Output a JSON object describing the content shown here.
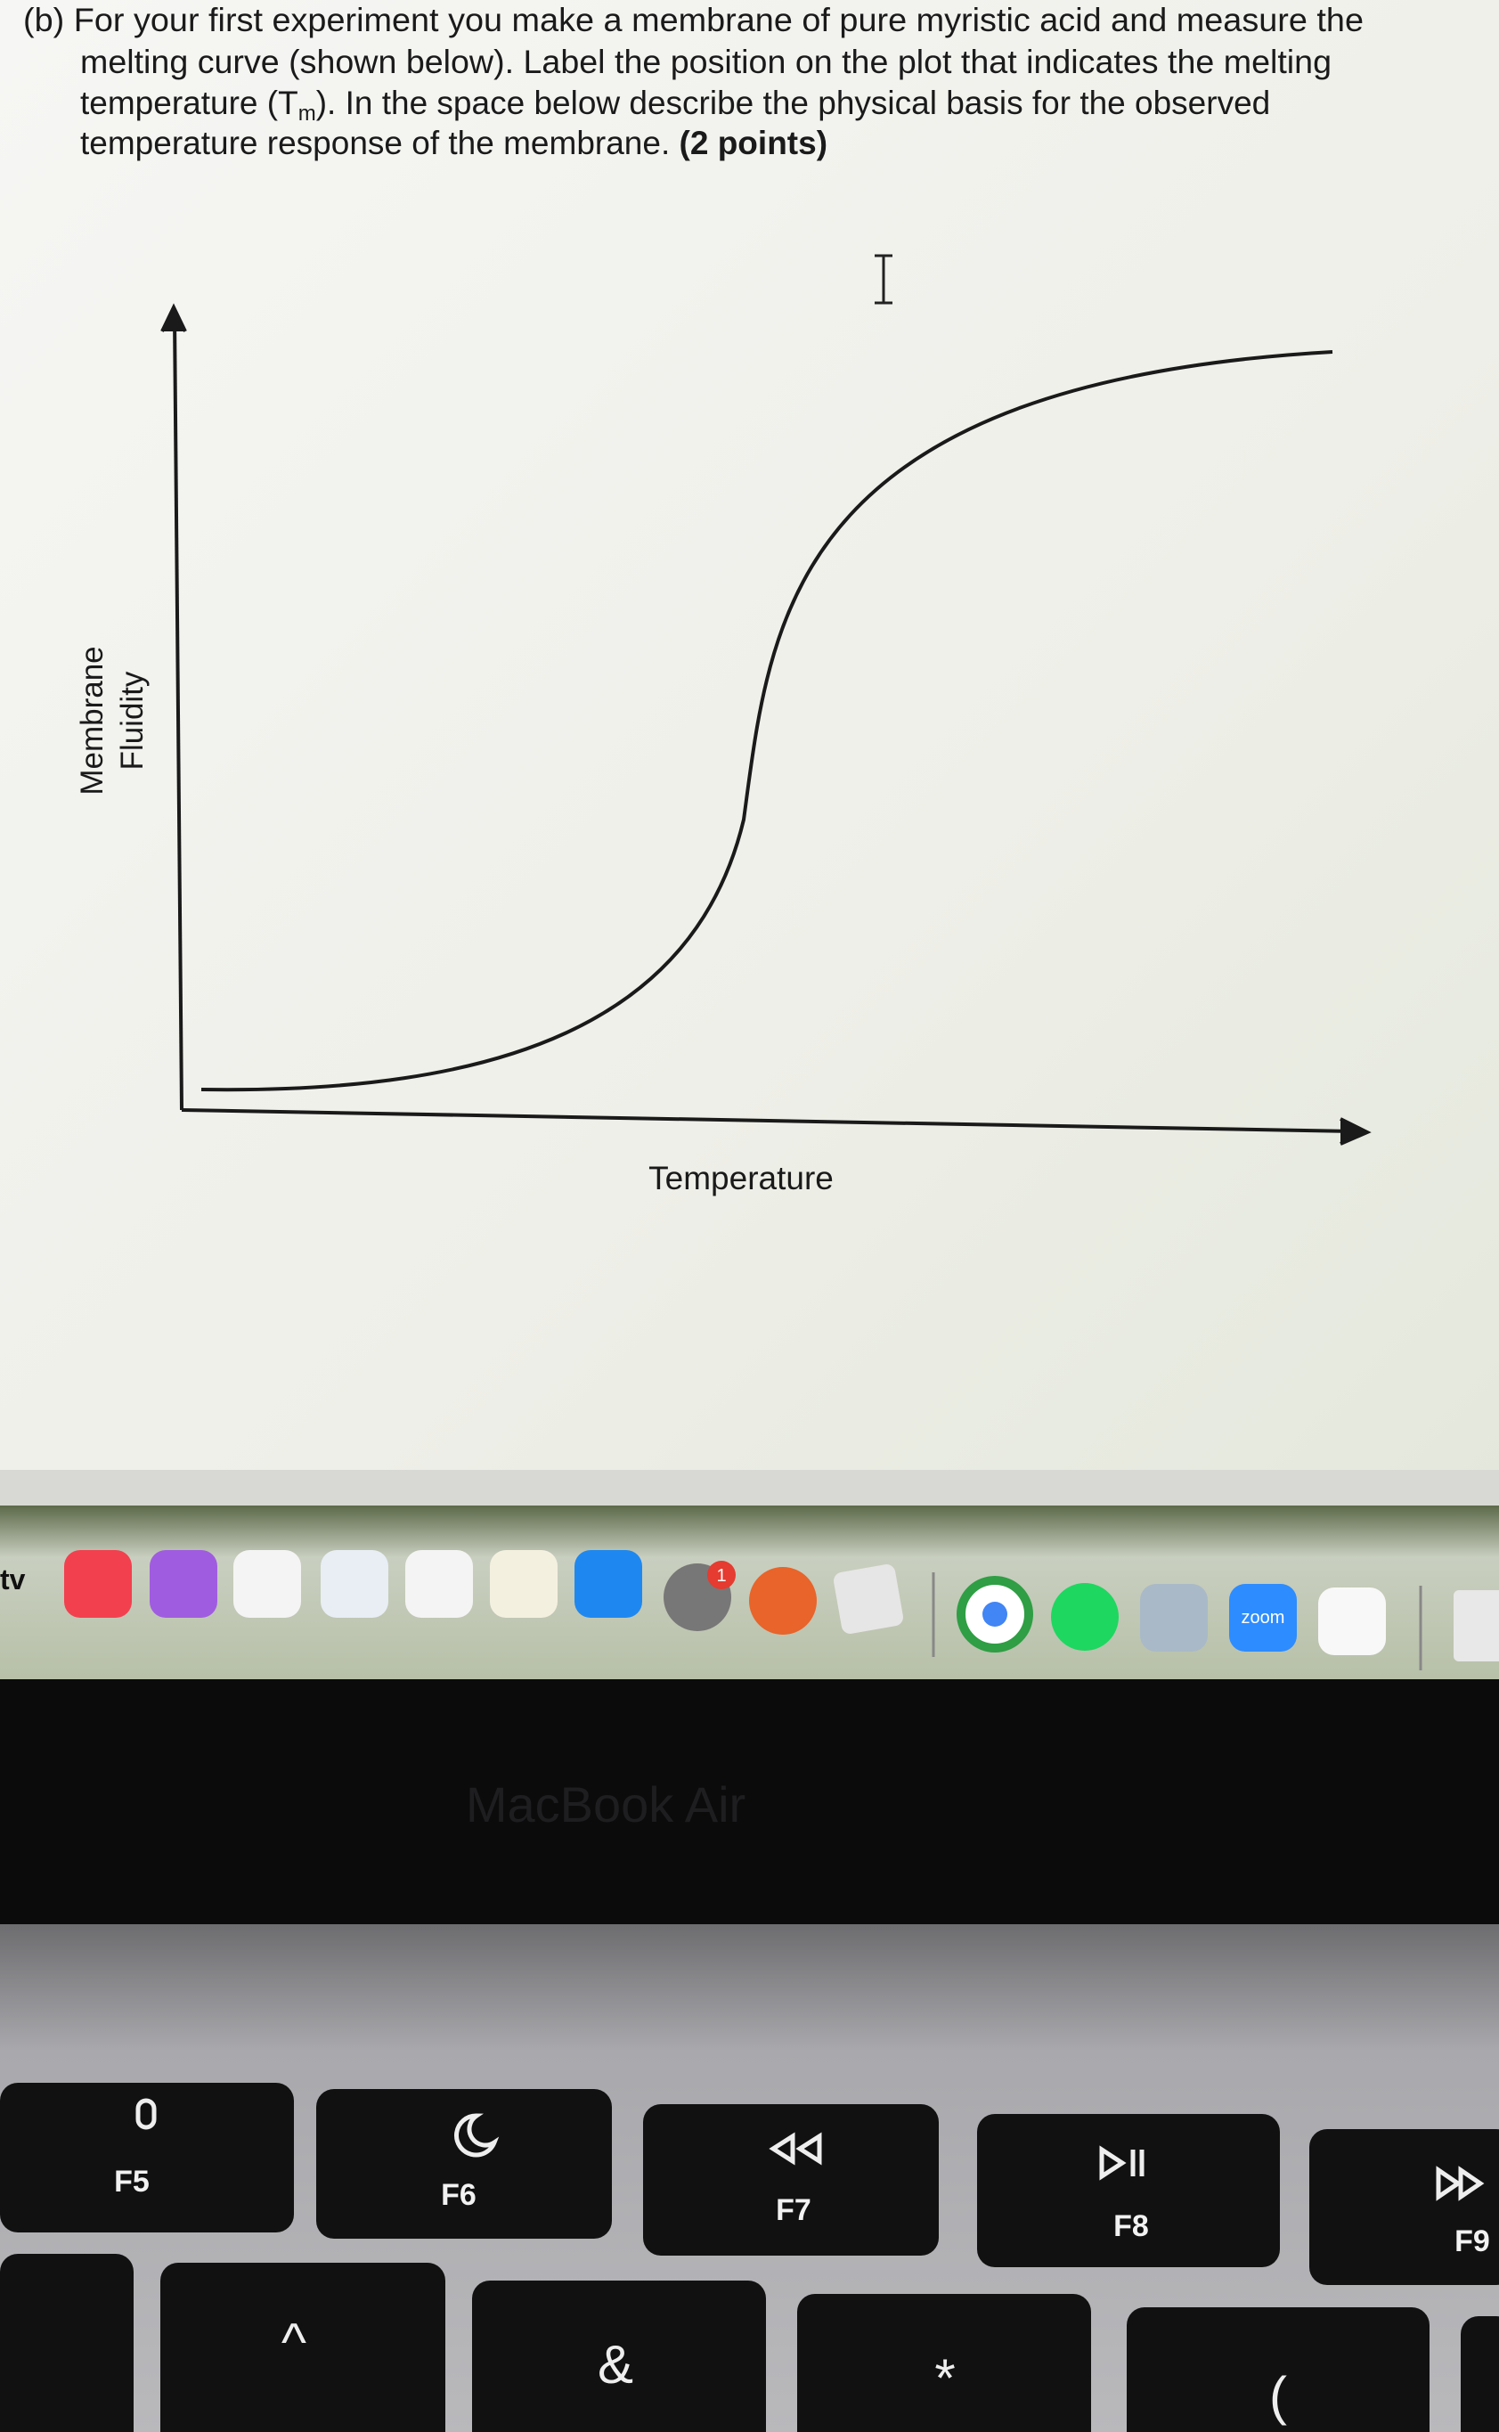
{
  "question": {
    "line1": "(b) For your first experiment you make a membrane of pure myristic acid and measure the",
    "line2": "melting curve (shown below). Label the position on the plot that indicates the melting",
    "line3_start": "temperature (T",
    "line3_subscript": "m",
    "line3_end": "). In the space below describe the physical basis for the observed",
    "line4": "temperature response of the membrane.",
    "points": "(2 points)"
  },
  "plot": {
    "y_label_line1": "Membrane",
    "y_label_line2": "Fluidity",
    "x_label": "Temperature"
  },
  "dock": {
    "tv": "tv",
    "badge": "1",
    "zoom": "zoom"
  },
  "laptop": {
    "model": "MacBook Air"
  },
  "keys": {
    "f5": "F5",
    "f6": "F6",
    "f7": "F7",
    "f8": "F8",
    "f9": "F9",
    "caret": "^",
    "ampersand": "&",
    "asterisk": "*",
    "paren": "("
  }
}
